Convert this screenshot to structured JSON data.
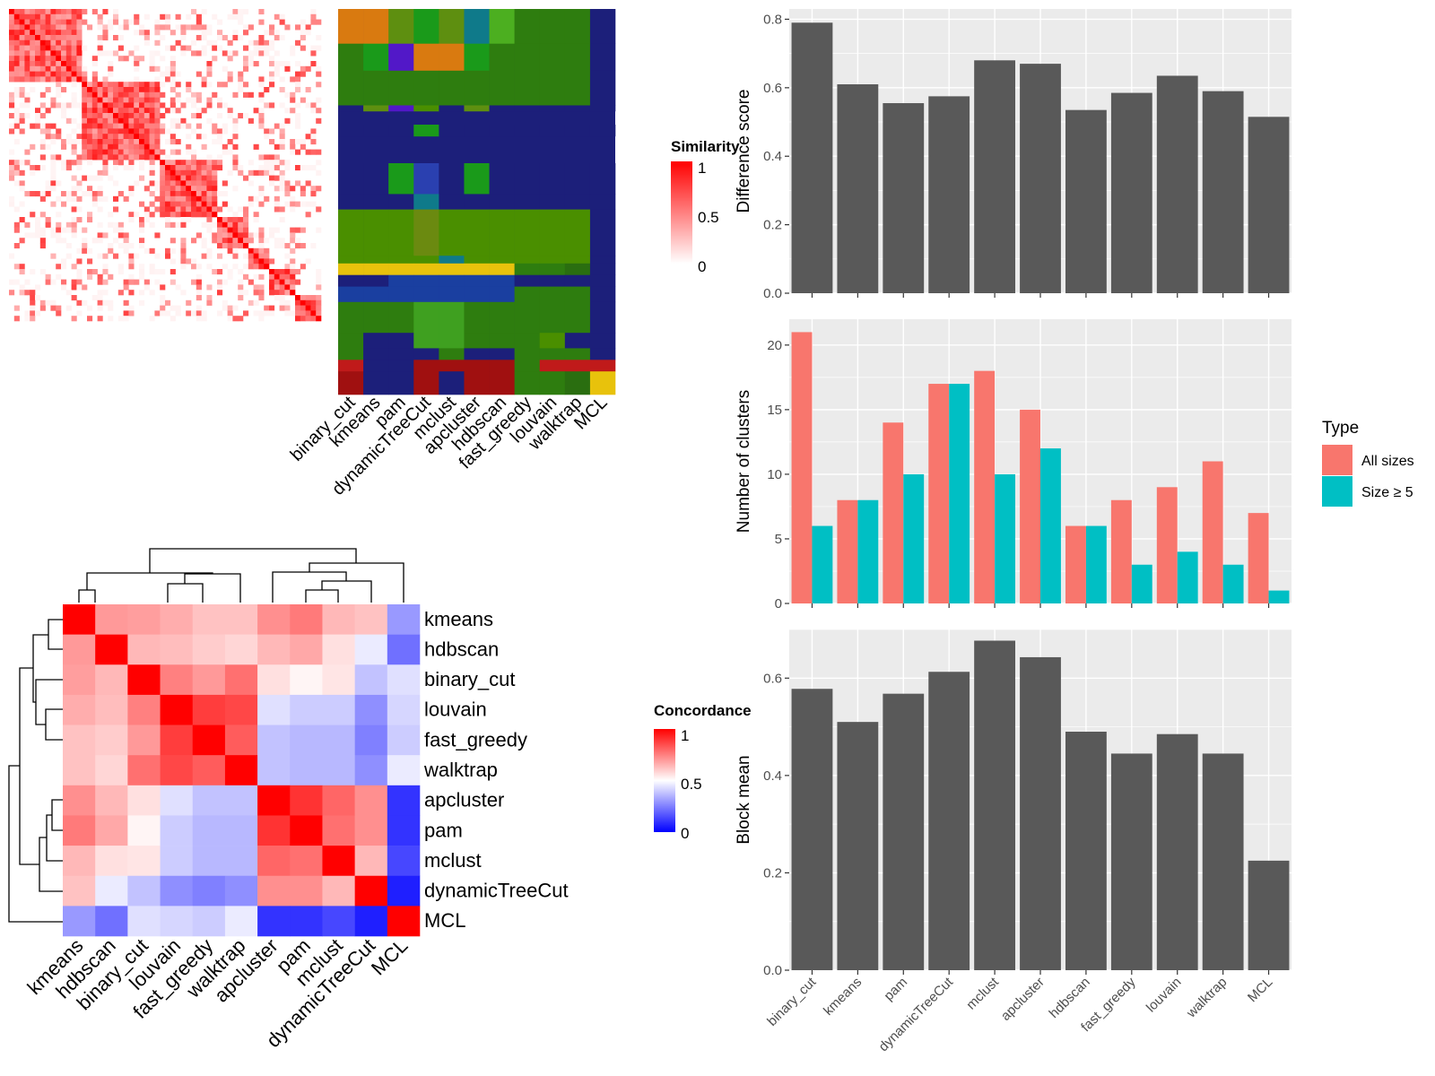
{
  "chart_data": [
    {
      "type": "heatmap",
      "subtype": "similarity-matrix-with-cluster-assignments",
      "legend_title": "Similarity",
      "legend_ticks": [
        "1",
        "0.5",
        "0"
      ],
      "column_labels": [
        "binary_cut",
        "kmeans",
        "pam",
        "dynamicTreeCut",
        "mclust",
        "apcluster",
        "hdbscan",
        "fast_greedy",
        "louvain",
        "walktrap",
        "MCL"
      ],
      "colors": {
        "low": "#ffffff",
        "high": "#ff0000"
      },
      "legend_extras": {
        "legend_color_ticks": [
          "1",
          "0.5",
          "0"
        ]
      }
    },
    {
      "type": "heatmap",
      "legend_title": "Concordance",
      "legend_ticks": [
        "1",
        "0.5",
        "0"
      ],
      "rows": [
        "kmeans",
        "hdbscan",
        "binary_cut",
        "louvain",
        "fast_greedy",
        "walktrap",
        "apcluster",
        "pam",
        "mclust",
        "dynamicTreeCut",
        "MCL"
      ],
      "columns": [
        "kmeans",
        "hdbscan",
        "binary_cut",
        "louvain",
        "fast_greedy",
        "walktrap",
        "apcluster",
        "pam",
        "mclust",
        "dynamicTreeCut",
        "MCL"
      ],
      "colors": {
        "low": "#0000ff",
        "mid": "#ffffff",
        "high": "#ff0000"
      },
      "values": [
        [
          1.0,
          0.7,
          0.69,
          0.66,
          0.62,
          0.62,
          0.72,
          0.76,
          0.64,
          0.62,
          0.3
        ],
        [
          0.7,
          1.0,
          0.64,
          0.63,
          0.6,
          0.58,
          0.64,
          0.67,
          0.56,
          0.46,
          0.22
        ],
        [
          0.69,
          0.64,
          1.0,
          0.75,
          0.7,
          0.78,
          0.56,
          0.52,
          0.55,
          0.38,
          0.44
        ],
        [
          0.66,
          0.63,
          0.75,
          1.0,
          0.88,
          0.86,
          0.44,
          0.4,
          0.4,
          0.28,
          0.42
        ],
        [
          0.62,
          0.6,
          0.7,
          0.88,
          1.0,
          0.82,
          0.38,
          0.36,
          0.36,
          0.25,
          0.4
        ],
        [
          0.62,
          0.58,
          0.78,
          0.86,
          0.82,
          1.0,
          0.38,
          0.36,
          0.36,
          0.28,
          0.46
        ],
        [
          0.72,
          0.64,
          0.56,
          0.44,
          0.38,
          0.38,
          1.0,
          0.9,
          0.8,
          0.72,
          0.1
        ],
        [
          0.76,
          0.67,
          0.52,
          0.4,
          0.36,
          0.36,
          0.9,
          1.0,
          0.78,
          0.72,
          0.1
        ],
        [
          0.64,
          0.56,
          0.55,
          0.4,
          0.36,
          0.36,
          0.8,
          0.78,
          1.0,
          0.64,
          0.14
        ],
        [
          0.62,
          0.46,
          0.38,
          0.28,
          0.25,
          0.28,
          0.72,
          0.72,
          0.64,
          1.0,
          0.06
        ],
        [
          0.3,
          0.22,
          0.44,
          0.42,
          0.4,
          0.46,
          0.1,
          0.1,
          0.14,
          0.06,
          1.0
        ]
      ]
    },
    {
      "type": "bar",
      "ylabel": "Difference score",
      "categories": [
        "binary_cut",
        "kmeans",
        "pam",
        "dynamicTreeCut",
        "mclust",
        "apcluster",
        "hdbscan",
        "fast_greedy",
        "louvain",
        "walktrap",
        "MCL"
      ],
      "values": [
        0.79,
        0.61,
        0.555,
        0.575,
        0.68,
        0.67,
        0.535,
        0.585,
        0.635,
        0.59,
        0.515
      ],
      "ylim": [
        0,
        0.83
      ],
      "yticks": [
        "0.0",
        "0.2",
        "0.4",
        "0.6",
        "0.8"
      ],
      "grid": true
    },
    {
      "type": "bar",
      "ylabel": "Number of clusters",
      "categories": [
        "binary_cut",
        "kmeans",
        "pam",
        "dynamicTreeCut",
        "mclust",
        "apcluster",
        "hdbscan",
        "fast_greedy",
        "louvain",
        "walktrap",
        "MCL"
      ],
      "series": [
        {
          "name": "All sizes",
          "color": "#f8766d",
          "values": [
            21,
            8,
            14,
            17,
            18,
            15,
            6,
            8,
            9,
            11,
            7
          ]
        },
        {
          "name": "Size ≥ 5",
          "color": "#00bfc4",
          "values": [
            6,
            8,
            10,
            17,
            10,
            12,
            6,
            3,
            4,
            3,
            1
          ]
        }
      ],
      "legend_title": "Type",
      "legend_position": "right",
      "ylim": [
        0,
        22
      ],
      "yticks": [
        "0",
        "5",
        "10",
        "15",
        "20"
      ],
      "grid": true
    },
    {
      "type": "bar",
      "ylabel": "Block mean",
      "categories": [
        "binary_cut",
        "kmeans",
        "pam",
        "dynamicTreeCut",
        "mclust",
        "apcluster",
        "hdbscan",
        "fast_greedy",
        "louvain",
        "walktrap",
        "MCL"
      ],
      "values": [
        0.578,
        0.51,
        0.568,
        0.613,
        0.677,
        0.643,
        0.49,
        0.445,
        0.485,
        0.445,
        0.225
      ],
      "ylim": [
        0,
        0.7
      ],
      "yticks": [
        "0.0",
        "0.2",
        "0.4",
        "0.6"
      ],
      "grid": true
    }
  ]
}
